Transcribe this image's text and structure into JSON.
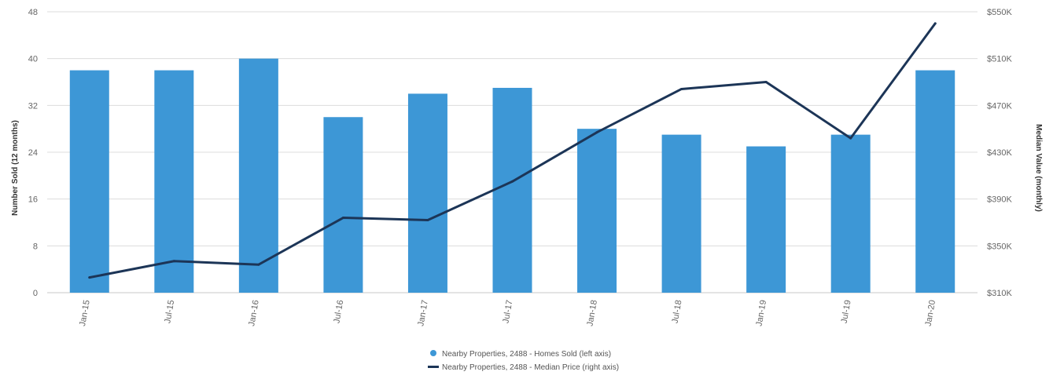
{
  "chart_data": {
    "type": "bar",
    "categories": [
      "Jan-15",
      "Jul-15",
      "Jan-16",
      "Jul-16",
      "Jan-17",
      "Jul-17",
      "Jan-18",
      "Jul-18",
      "Jan-19",
      "Jul-19",
      "Jan-20"
    ],
    "series": [
      {
        "name": "Nearby Properties, 2488 - Homes Sold (left axis)",
        "type": "bar",
        "axis": "left",
        "color": "#3d97d6",
        "values": [
          38,
          38,
          40,
          30,
          34,
          35,
          28,
          27,
          25,
          27,
          38
        ]
      },
      {
        "name": "Nearby Properties, 2488 - Median Price (right axis)",
        "type": "line",
        "axis": "right",
        "color": "#1c3557",
        "values": [
          323000,
          337000,
          334000,
          374000,
          372000,
          405000,
          447000,
          484000,
          490000,
          442000,
          540000
        ]
      }
    ],
    "y_left": {
      "label": "Number Sold (12 months)",
      "ylim": [
        0,
        48
      ],
      "ticks": [
        "0",
        "8",
        "16",
        "24",
        "32",
        "40",
        "48"
      ]
    },
    "y_right": {
      "label": "Median Value (monthly)",
      "ylim": [
        310000,
        550000
      ],
      "ticks": [
        "$310K",
        "$350K",
        "$390K",
        "$430K",
        "$470K",
        "$510K",
        "$550K"
      ]
    },
    "grid": true,
    "legend_position": "bottom-center"
  }
}
